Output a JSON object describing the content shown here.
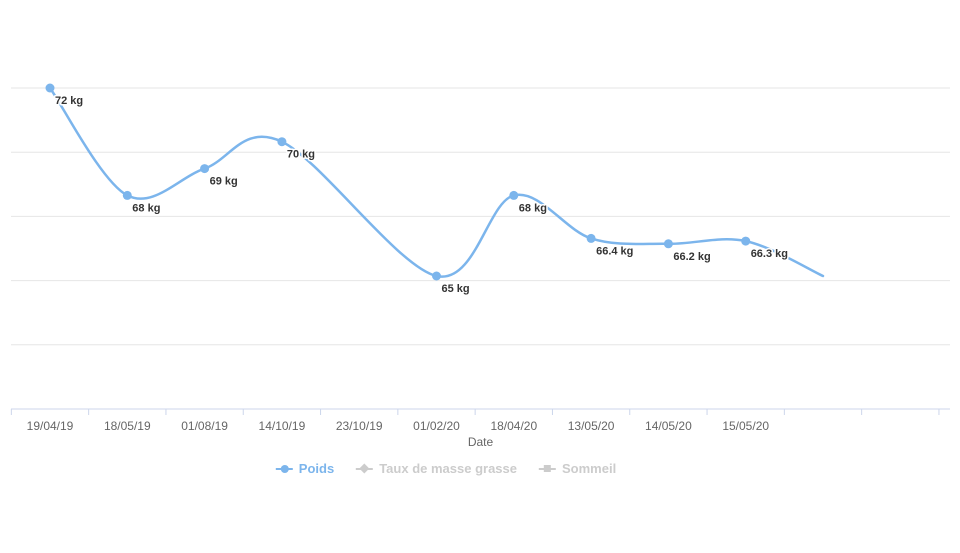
{
  "chart_data": {
    "type": "line",
    "title": "",
    "xlabel": "Date",
    "ylabel": "",
    "unit": "kg",
    "grid": true,
    "legend_position": "bottom",
    "line_shape": "spline",
    "categories": [
      "19/04/19",
      "18/05/19",
      "01/08/19",
      "14/10/19",
      "23/10/19",
      "01/02/20",
      "18/04/20",
      "13/05/20",
      "14/05/20",
      "15/05/20"
    ],
    "series": [
      {
        "name": "Poids",
        "color": "#7cb5ec",
        "marker": "circle",
        "visible": true,
        "points": [
          {
            "x_index": 0,
            "category": "19/04/19",
            "value": 72,
            "label": "72 kg"
          },
          {
            "x_index": 1,
            "category": "18/05/19",
            "value": 68,
            "label": "68 kg"
          },
          {
            "x_index": 2,
            "category": "01/08/19",
            "value": 69,
            "label": "69 kg"
          },
          {
            "x_index": 3,
            "category": "14/10/19",
            "value": 70,
            "label": "70 kg"
          },
          {
            "x_index": 5,
            "category": "01/02/20",
            "value": 65,
            "label": "65 kg"
          },
          {
            "x_index": 6,
            "category": "18/04/20",
            "value": 68,
            "label": "68 kg"
          },
          {
            "x_index": 7,
            "category": "13/05/20",
            "value": 66.4,
            "label": "66.4 kg"
          },
          {
            "x_index": 8,
            "category": "14/05/20",
            "value": 66.2,
            "label": "66.2 kg"
          },
          {
            "x_index": 9,
            "category": "15/05/20",
            "value": 66.3,
            "label": "66.3 kg"
          }
        ],
        "clipped_next_point_estimate": {
          "x_index": 10,
          "value": 65
        }
      },
      {
        "name": "Taux de masse grasse",
        "marker": "diamond",
        "visible": false,
        "points": []
      },
      {
        "name": "Sommeil",
        "marker": "square",
        "visible": false,
        "points": []
      }
    ],
    "colors": {
      "series_blue": "#7cb5ec",
      "grid_line": "#e6e6e6",
      "axis_line": "#ccd6eb",
      "tick_label": "#666666",
      "axis_title": "#666666",
      "data_label": "#333333",
      "legend_active": "#333333",
      "legend_disabled": "#cccccc"
    }
  }
}
